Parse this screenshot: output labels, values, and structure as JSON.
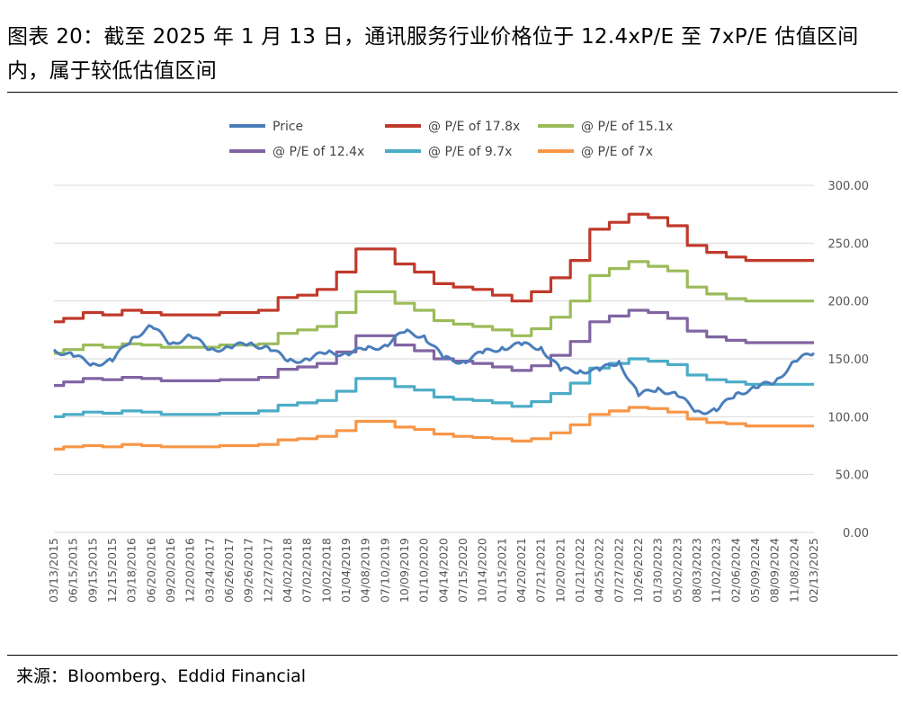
{
  "figure": {
    "title": "图表 20：截至 2025 年 1 月 13 日，通讯服务行业价格位于 12.4xP/E 至 7xP/E 估值区间内，属于较低估值区间",
    "source": "来源：Bloomberg、Eddid Financial"
  },
  "chart_data": {
    "type": "line",
    "title": "",
    "xlabel": "",
    "ylabel": "",
    "ylim": [
      0,
      300
    ],
    "yticks": [
      "0.00",
      "50.00",
      "100.00",
      "150.00",
      "200.00",
      "250.00",
      "300.00"
    ],
    "grid": "horizontal",
    "legend_position": "top",
    "x": [
      "03/13/2015",
      "06/15/2015",
      "09/15/2015",
      "12/15/2015",
      "03/18/2016",
      "06/20/2016",
      "09/20/2016",
      "12/20/2016",
      "03/24/2017",
      "06/26/2017",
      "09/26/2017",
      "12/27/2017",
      "04/02/2018",
      "07/02/2018",
      "10/02/2018",
      "01/04/2019",
      "04/08/2019",
      "07/10/2019",
      "10/09/2019",
      "01/10/2020",
      "04/14/2020",
      "07/15/2020",
      "10/14/2020",
      "01/15/2021",
      "04/20/2021",
      "07/21/2021",
      "10/20/2021",
      "01/21/2022",
      "04/25/2022",
      "07/27/2022",
      "10/26/2022",
      "01/30/2023",
      "05/02/2023",
      "08/03/2023",
      "11/02/2023",
      "02/06/2024",
      "05/09/2024",
      "08/09/2024",
      "11/08/2024",
      "02/13/2025"
    ],
    "series": [
      {
        "name": "Price",
        "color": "#4a7ebb",
        "values": [
          158,
          152,
          146,
          148,
          168,
          178,
          163,
          170,
          158,
          160,
          163,
          160,
          148,
          150,
          155,
          155,
          158,
          162,
          173,
          170,
          150,
          148,
          155,
          160,
          162,
          160,
          140,
          140,
          140,
          148,
          118,
          125,
          118,
          105,
          105,
          120,
          125,
          130,
          148,
          155
        ]
      },
      {
        "name": "@ P/E of 17.8x",
        "color": "#c0392b",
        "values": [
          182,
          185,
          190,
          188,
          192,
          190,
          188,
          188,
          188,
          190,
          190,
          192,
          203,
          205,
          210,
          225,
          245,
          245,
          232,
          225,
          215,
          212,
          210,
          205,
          200,
          208,
          220,
          235,
          262,
          268,
          275,
          272,
          265,
          248,
          242,
          238,
          235,
          235,
          235,
          235
        ]
      },
      {
        "name": "@ P/E of 15.1x",
        "color": "#9bbb59",
        "values": [
          155,
          158,
          162,
          160,
          163,
          162,
          160,
          160,
          160,
          162,
          162,
          163,
          172,
          175,
          178,
          190,
          208,
          208,
          198,
          192,
          183,
          180,
          178,
          175,
          170,
          176,
          186,
          200,
          222,
          228,
          234,
          230,
          226,
          212,
          206,
          202,
          200,
          200,
          200,
          200
        ]
      },
      {
        "name": "@ P/E of 12.4x",
        "color": "#8064a2",
        "values": [
          127,
          130,
          133,
          132,
          134,
          133,
          131,
          131,
          131,
          132,
          132,
          134,
          141,
          143,
          146,
          156,
          170,
          170,
          162,
          157,
          150,
          148,
          146,
          143,
          140,
          144,
          153,
          165,
          182,
          187,
          192,
          190,
          185,
          174,
          169,
          166,
          164,
          164,
          164,
          164
        ]
      },
      {
        "name": "@ P/E of 9.7x",
        "color": "#4bacc6",
        "values": [
          100,
          102,
          104,
          103,
          105,
          104,
          102,
          102,
          102,
          103,
          103,
          105,
          110,
          112,
          114,
          122,
          133,
          133,
          126,
          123,
          117,
          115,
          114,
          112,
          109,
          113,
          120,
          129,
          142,
          146,
          150,
          148,
          145,
          136,
          132,
          130,
          128,
          128,
          128,
          128
        ]
      },
      {
        "name": "@ P/E of 7x",
        "color": "#f79646",
        "values": [
          72,
          74,
          75,
          74,
          76,
          75,
          74,
          74,
          74,
          75,
          75,
          76,
          80,
          81,
          83,
          88,
          96,
          96,
          91,
          89,
          85,
          83,
          82,
          81,
          79,
          81,
          86,
          93,
          102,
          105,
          108,
          107,
          104,
          98,
          95,
          94,
          92,
          92,
          92,
          92
        ]
      }
    ]
  }
}
